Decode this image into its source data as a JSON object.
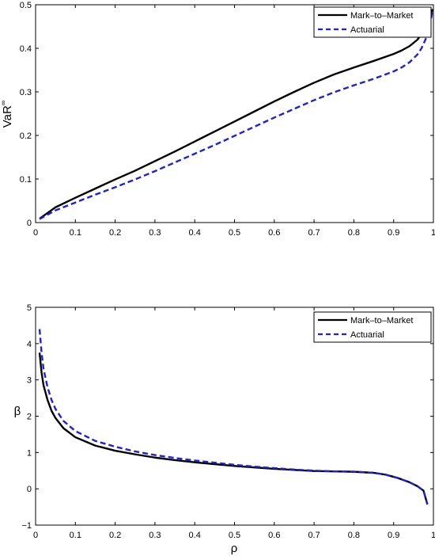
{
  "chart_data": [
    {
      "type": "line",
      "ylabel": "VaR",
      "ylabel_superscript": "∞",
      "xlabel": "",
      "xlim": [
        0,
        1
      ],
      "ylim": [
        0,
        0.5
      ],
      "xticks": [
        "0",
        "0.1",
        "0.2",
        "0.3",
        "0.4",
        "0.5",
        "0.6",
        "0.7",
        "0.8",
        "0.9",
        "1"
      ],
      "yticks": [
        "0",
        "0.1",
        "0.2",
        "0.3",
        "0.4",
        "0.5"
      ],
      "legend": {
        "location": "top-right"
      },
      "series": [
        {
          "name": "Mark–to–Market",
          "color": "#000000",
          "style": "solid",
          "points": [
            [
              0.01,
              0.009
            ],
            [
              0.05,
              0.035
            ],
            [
              0.1,
              0.057
            ],
            [
              0.15,
              0.078
            ],
            [
              0.2,
              0.099
            ],
            [
              0.25,
              0.119
            ],
            [
              0.3,
              0.141
            ],
            [
              0.35,
              0.163
            ],
            [
              0.4,
              0.186
            ],
            [
              0.45,
              0.209
            ],
            [
              0.5,
              0.232
            ],
            [
              0.55,
              0.255
            ],
            [
              0.6,
              0.278
            ],
            [
              0.65,
              0.3
            ],
            [
              0.7,
              0.321
            ],
            [
              0.75,
              0.34
            ],
            [
              0.8,
              0.356
            ],
            [
              0.85,
              0.371
            ],
            [
              0.9,
              0.387
            ],
            [
              0.92,
              0.395
            ],
            [
              0.94,
              0.405
            ],
            [
              0.96,
              0.42
            ],
            [
              0.97,
              0.433
            ],
            [
              0.98,
              0.448
            ],
            [
              0.99,
              0.468
            ],
            [
              0.998,
              0.49
            ]
          ]
        },
        {
          "name": "Actuarial",
          "color": "#1f1fdf",
          "style": "dashed",
          "points": [
            [
              0.01,
              0.008
            ],
            [
              0.05,
              0.028
            ],
            [
              0.1,
              0.046
            ],
            [
              0.15,
              0.064
            ],
            [
              0.2,
              0.081
            ],
            [
              0.25,
              0.099
            ],
            [
              0.3,
              0.118
            ],
            [
              0.35,
              0.138
            ],
            [
              0.4,
              0.158
            ],
            [
              0.45,
              0.178
            ],
            [
              0.5,
              0.199
            ],
            [
              0.55,
              0.22
            ],
            [
              0.6,
              0.241
            ],
            [
              0.65,
              0.261
            ],
            [
              0.7,
              0.281
            ],
            [
              0.75,
              0.299
            ],
            [
              0.8,
              0.315
            ],
            [
              0.85,
              0.33
            ],
            [
              0.9,
              0.347
            ],
            [
              0.92,
              0.356
            ],
            [
              0.94,
              0.368
            ],
            [
              0.96,
              0.386
            ],
            [
              0.97,
              0.4
            ],
            [
              0.98,
              0.42
            ],
            [
              0.99,
              0.448
            ],
            [
              0.998,
              0.488
            ]
          ]
        }
      ]
    },
    {
      "type": "line",
      "ylabel": "β",
      "xlabel": "ρ",
      "xlim": [
        0,
        1
      ],
      "ylim": [
        -1,
        5
      ],
      "xticks": [
        "0",
        "0.1",
        "0.2",
        "0.3",
        "0.4",
        "0.5",
        "0.6",
        "0.7",
        "0.8",
        "0.9",
        "1"
      ],
      "yticks": [
        "−1",
        "0",
        "1",
        "2",
        "3",
        "4",
        "5"
      ],
      "legend": {
        "location": "top-right"
      },
      "series": [
        {
          "name": "Mark–to–Market",
          "color": "#000000",
          "style": "solid",
          "points": [
            [
              0.01,
              3.75
            ],
            [
              0.015,
              3.2
            ],
            [
              0.02,
              2.85
            ],
            [
              0.03,
              2.45
            ],
            [
              0.04,
              2.15
            ],
            [
              0.05,
              1.95
            ],
            [
              0.07,
              1.67
            ],
            [
              0.1,
              1.42
            ],
            [
              0.15,
              1.19
            ],
            [
              0.2,
              1.05
            ],
            [
              0.25,
              0.95
            ],
            [
              0.3,
              0.86
            ],
            [
              0.35,
              0.79
            ],
            [
              0.4,
              0.73
            ],
            [
              0.45,
              0.68
            ],
            [
              0.5,
              0.63
            ],
            [
              0.55,
              0.59
            ],
            [
              0.6,
              0.55
            ],
            [
              0.65,
              0.52
            ],
            [
              0.7,
              0.49
            ],
            [
              0.75,
              0.48
            ],
            [
              0.8,
              0.47
            ],
            [
              0.85,
              0.44
            ],
            [
              0.88,
              0.39
            ],
            [
              0.91,
              0.3
            ],
            [
              0.94,
              0.18
            ],
            [
              0.96,
              0.07
            ],
            [
              0.975,
              -0.05
            ],
            [
              0.985,
              -0.43
            ]
          ]
        },
        {
          "name": "Actuarial",
          "color": "#1f1fdf",
          "style": "dashed",
          "points": [
            [
              0.01,
              4.4
            ],
            [
              0.015,
              3.75
            ],
            [
              0.02,
              3.3
            ],
            [
              0.03,
              2.8
            ],
            [
              0.04,
              2.45
            ],
            [
              0.05,
              2.2
            ],
            [
              0.07,
              1.87
            ],
            [
              0.1,
              1.59
            ],
            [
              0.15,
              1.32
            ],
            [
              0.2,
              1.16
            ],
            [
              0.25,
              1.03
            ],
            [
              0.3,
              0.93
            ],
            [
              0.35,
              0.85
            ],
            [
              0.4,
              0.78
            ],
            [
              0.45,
              0.72
            ],
            [
              0.5,
              0.66
            ],
            [
              0.55,
              0.61
            ],
            [
              0.6,
              0.57
            ],
            [
              0.65,
              0.53
            ],
            [
              0.7,
              0.5
            ],
            [
              0.75,
              0.48
            ],
            [
              0.8,
              0.47
            ],
            [
              0.85,
              0.44
            ],
            [
              0.88,
              0.39
            ],
            [
              0.91,
              0.3
            ],
            [
              0.94,
              0.18
            ],
            [
              0.96,
              0.07
            ],
            [
              0.975,
              -0.05
            ],
            [
              0.985,
              -0.43
            ]
          ]
        }
      ]
    }
  ]
}
